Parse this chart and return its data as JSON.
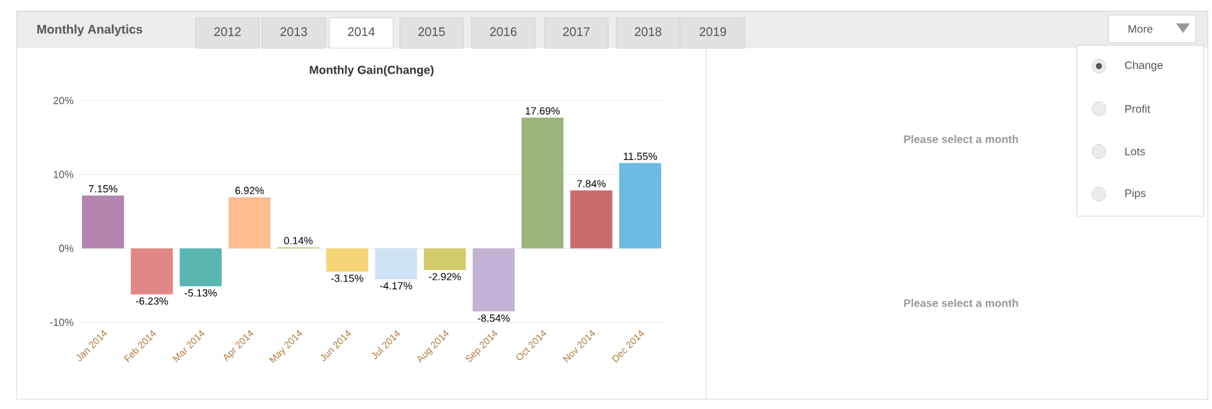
{
  "chart_data": {
    "type": "bar",
    "title": "Monthly Gain(Change)",
    "categories": [
      "Jan 2014",
      "Feb 2014",
      "Mar 2014",
      "Apr 2014",
      "May 2014",
      "Jun 2014",
      "Jul 2014",
      "Aug 2014",
      "Sep 2014",
      "Oct 2014",
      "Nov 2014",
      "Dec 2014"
    ],
    "values": [
      7.15,
      -6.23,
      -5.13,
      6.92,
      0.14,
      -3.15,
      -4.17,
      -2.92,
      -8.54,
      17.69,
      7.84,
      11.55
    ],
    "value_labels": [
      "7.15%",
      "-6.23%",
      "-5.13%",
      "6.92%",
      "0.14%",
      "-3.15%",
      "-4.17%",
      "-2.92%",
      "-8.54%",
      "17.69%",
      "7.84%",
      "11.55%"
    ],
    "colors": [
      "#b384b0",
      "#e08886",
      "#5bb5b1",
      "#fdbd8f",
      "#b5cc6a",
      "#f5d576",
      "#cfe3f7",
      "#d1cb6c",
      "#c3b1d6",
      "#9cb57f",
      "#c96b6c",
      "#6bbbe3"
    ],
    "ylim": [
      -10,
      20
    ],
    "yticks": [
      {
        "value": -10,
        "label": "-10%"
      },
      {
        "value": 0,
        "label": "0%"
      },
      {
        "value": 10,
        "label": "10%"
      },
      {
        "value": 20,
        "label": "20%"
      }
    ],
    "grid": "y",
    "annotations": [
      "Monthly Analytics",
      "2012",
      "2013",
      "2014",
      "2015",
      "2016",
      "2017",
      "2018",
      "2019",
      "More",
      "Change",
      "Profit",
      "Lots",
      "Pips",
      "Please select a month",
      "Please select a month"
    ]
  }
}
